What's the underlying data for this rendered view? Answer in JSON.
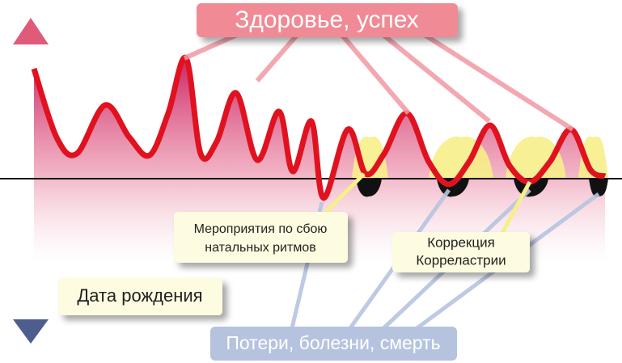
{
  "health": "Здоровье, успех",
  "measures": {
    "lines": [
      "Мероприятия по сбою",
      "натальных ритмов"
    ]
  },
  "correction": {
    "lines": [
      "Коррекция",
      "Корреластрии"
    ]
  },
  "birth": "Дата рождения",
  "losses": "Потери, болезни, смерть"
}
